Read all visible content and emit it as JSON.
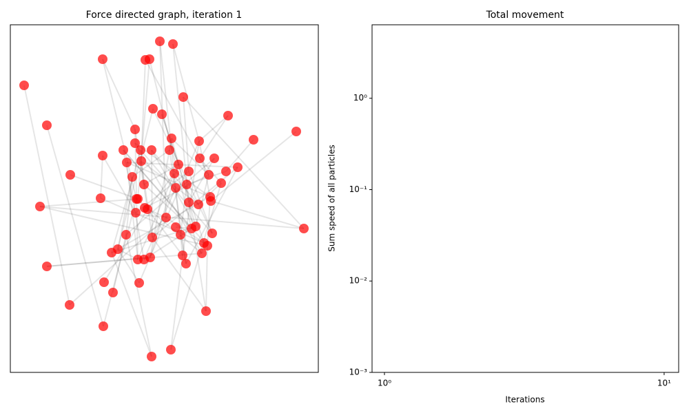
{
  "chart_data": [
    {
      "type": "network",
      "title": "Force directed graph, iteration 1",
      "color": "#ff0000",
      "edge_color": "#000000",
      "xlim": [
        0,
        447
      ],
      "ylim": [
        0,
        505
      ],
      "x": [
        20,
        53,
        134,
        217,
        236,
        196,
        202,
        251,
        207,
        220,
        316,
        181,
        415,
        353,
        234,
        181,
        274,
        164,
        189,
        205,
        231,
        134,
        275,
        296,
        169,
        190,
        244,
        330,
        313,
        87,
        259,
        238,
        177,
        288,
        306,
        194,
        256,
        240,
        131,
        185,
        183,
        290,
        291,
        259,
        273,
        43,
        195,
        199,
        182,
        226,
        426,
        240,
        263,
        269,
        247,
        293,
        168,
        206,
        281,
        286,
        156,
        147,
        278,
        250,
        185,
        194,
        203,
        255,
        53,
        136,
        187,
        149,
        86,
        284,
        135,
        233,
        205
      ],
      "values": [
        417,
        359,
        455,
        481,
        477,
        454,
        455,
        400,
        383,
        375,
        373,
        353,
        350,
        338,
        340,
        333,
        336,
        323,
        323,
        323,
        323,
        315,
        311,
        311,
        305,
        307,
        302,
        298,
        292,
        287,
        292,
        289,
        284,
        287,
        275,
        273,
        273,
        268,
        253,
        252,
        252,
        255,
        249,
        247,
        244,
        241,
        239,
        237,
        232,
        225,
        209,
        211,
        209,
        212,
        200,
        202,
        200,
        196,
        188,
        184,
        179,
        174,
        173,
        170,
        164,
        164,
        167,
        158,
        154,
        131,
        130,
        116,
        98,
        89,
        67,
        33,
        23
      ],
      "edges": [
        [
          0,
          72
        ],
        [
          1,
          74
        ],
        [
          2,
          40
        ],
        [
          3,
          49
        ],
        [
          4,
          43
        ],
        [
          5,
          33
        ],
        [
          6,
          52
        ],
        [
          7,
          50
        ],
        [
          8,
          55
        ],
        [
          9,
          58
        ],
        [
          10,
          22
        ],
        [
          12,
          42
        ],
        [
          13,
          28
        ],
        [
          11,
          47
        ],
        [
          14,
          53
        ],
        [
          15,
          41
        ],
        [
          16,
          63
        ],
        [
          17,
          59
        ],
        [
          18,
          61
        ],
        [
          19,
          57
        ],
        [
          20,
          67
        ],
        [
          21,
          48
        ],
        [
          22,
          34
        ],
        [
          23,
          56
        ],
        [
          24,
          64
        ],
        [
          25,
          35
        ],
        [
          26,
          66
        ],
        [
          27,
          24
        ],
        [
          28,
          36
        ],
        [
          29,
          39
        ],
        [
          30,
          55
        ],
        [
          31,
          47
        ],
        [
          32,
          60
        ],
        [
          33,
          53
        ],
        [
          34,
          44
        ],
        [
          35,
          26
        ],
        [
          36,
          54
        ],
        [
          37,
          65
        ],
        [
          38,
          21
        ],
        [
          39,
          45
        ],
        [
          40,
          62
        ],
        [
          41,
          59
        ],
        [
          42,
          16
        ],
        [
          43,
          23
        ],
        [
          44,
          19
        ],
        [
          45,
          50
        ],
        [
          46,
          49
        ],
        [
          47,
          63
        ],
        [
          48,
          30
        ],
        [
          49,
          58
        ],
        [
          50,
          42
        ],
        [
          51,
          52
        ],
        [
          52,
          17
        ],
        [
          53,
          61
        ],
        [
          54,
          67
        ],
        [
          55,
          18
        ],
        [
          56,
          32
        ],
        [
          57,
          25
        ],
        [
          58,
          62
        ],
        [
          59,
          73
        ],
        [
          60,
          64
        ],
        [
          61,
          41
        ],
        [
          62,
          68
        ],
        [
          63,
          37
        ],
        [
          64,
          11
        ],
        [
          65,
          52
        ],
        [
          66,
          14
        ],
        [
          67,
          27
        ],
        [
          68,
          66
        ],
        [
          69,
          47
        ],
        [
          70,
          16
        ],
        [
          71,
          56
        ],
        [
          72,
          49
        ],
        [
          73,
          43
        ],
        [
          74,
          40
        ],
        [
          75,
          63
        ],
        [
          76,
          56
        ],
        [
          2,
          11
        ],
        [
          3,
          37
        ],
        [
          4,
          16
        ],
        [
          7,
          30
        ],
        [
          8,
          60
        ],
        [
          9,
          26
        ],
        [
          10,
          16
        ],
        [
          14,
          33
        ],
        [
          15,
          62
        ],
        [
          17,
          65
        ],
        [
          19,
          53
        ],
        [
          20,
          32
        ],
        [
          25,
          44
        ],
        [
          27,
          57
        ],
        [
          31,
          64
        ],
        [
          33,
          46
        ],
        [
          35,
          52
        ],
        [
          38,
          58
        ],
        [
          41,
          24
        ],
        [
          45,
          59
        ],
        [
          57,
          73
        ],
        [
          60,
          70
        ],
        [
          61,
          76
        ],
        [
          75,
          34
        ],
        [
          6,
          39
        ],
        [
          5,
          25
        ]
      ]
    },
    {
      "type": "line",
      "title": "Total movement",
      "x_label": "Iterations",
      "y_label": "Sum speed of all particles",
      "x_scale": "log",
      "y_scale": "log",
      "xlim": [
        0.903,
        11.27
      ],
      "ylim": [
        0.001,
        6.37
      ],
      "xticks": [
        {
          "value": 1,
          "label": "10⁰"
        },
        {
          "value": 10,
          "label": "10¹"
        }
      ],
      "yticks": [
        {
          "value": 0.001,
          "label": "10⁻³"
        },
        {
          "value": 0.01,
          "label": "10⁻²"
        },
        {
          "value": 0.1,
          "label": "10⁻¹"
        },
        {
          "value": 1,
          "label": "10⁰"
        }
      ]
    }
  ]
}
